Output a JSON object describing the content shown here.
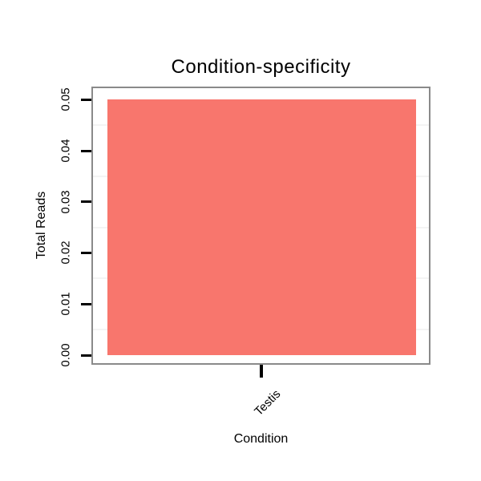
{
  "chart_data": {
    "type": "bar",
    "title": "Condition-specificity",
    "xlabel": "Condition",
    "ylabel": "Total Reads",
    "categories": [
      "Testis"
    ],
    "values": [
      0.05
    ],
    "ylim": [
      0,
      0.05
    ],
    "yticks": [
      "0.00",
      "0.01",
      "0.02",
      "0.03",
      "0.04",
      "0.05"
    ],
    "ytick_interval": 0.01,
    "minor_grid_interval": 0.005,
    "x_tick_label_rotation_deg": 45,
    "legend_position": "none",
    "grid": "minor-only",
    "colors": {
      "bar_fill": "#F8766D",
      "panel_border": "#8a8a8a",
      "minor_gridline": "#f4f4f4",
      "tick_and_text": "#000000",
      "background": "#ffffff"
    }
  }
}
